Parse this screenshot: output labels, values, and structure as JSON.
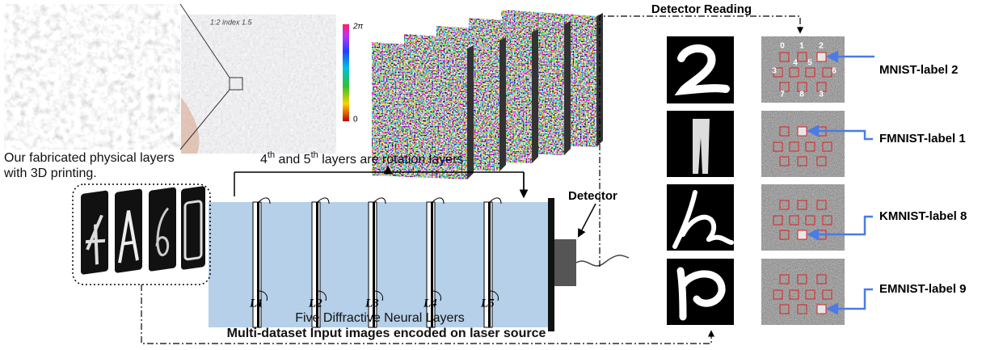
{
  "header": {
    "title": "Detector Reading"
  },
  "photo": {
    "caption": [
      "Our fabricated physical layers",
      "with 3D printing."
    ],
    "handwriting": "1:2 index 1.5"
  },
  "colorbar": {
    "max": "2π",
    "min": "0"
  },
  "rotation_note": {
    "parts": [
      "4",
      "th",
      " and 5",
      "th",
      " layers are rotation layers"
    ]
  },
  "detector": {
    "label": "Detector"
  },
  "layers": {
    "labels": [
      "L1",
      "L2",
      "L3",
      "L4",
      "L5"
    ],
    "caption": "Five Diffractive Neural Layers"
  },
  "input": {
    "caption": "Multi-dataset Input images encoded on laser source"
  },
  "readout": {
    "digits": [
      "0",
      "1",
      "2",
      "3",
      "4",
      "5",
      "6",
      "7",
      "8",
      "3"
    ],
    "labels": [
      "MNIST-label 2",
      "FMNIST-label 1",
      "KMNIST-label 8",
      "EMNIST-label 9"
    ]
  }
}
